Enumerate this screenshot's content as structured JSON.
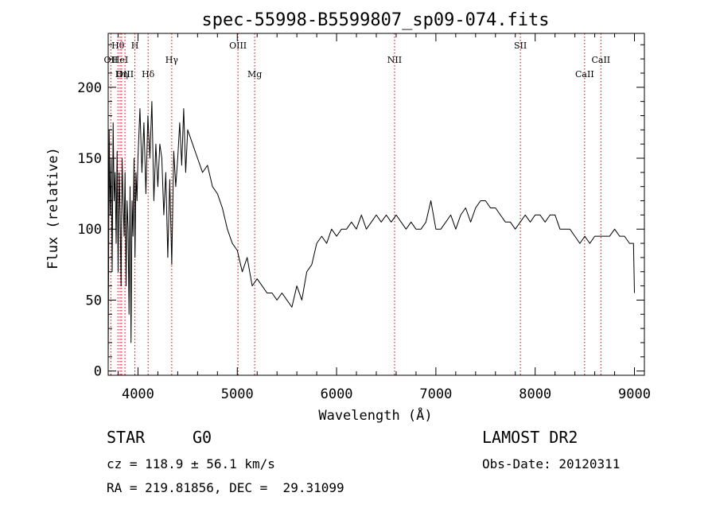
{
  "chart_data": {
    "type": "line",
    "title": "spec-55998-B5599807_sp09-074.fits",
    "xlabel": "Wavelength (Å)",
    "ylabel": "Flux (relative)",
    "xlim": [
      3700,
      9100
    ],
    "ylim": [
      -3,
      238
    ],
    "xticks": [
      4000,
      5000,
      6000,
      7000,
      8000,
      9000
    ],
    "yticks": [
      0,
      50,
      100,
      150,
      200
    ],
    "grid": false,
    "line_color": "#000000",
    "marker_color": "#cc0000",
    "series": [
      {
        "x": [
          3700,
          3710,
          3720,
          3730,
          3740,
          3750,
          3760,
          3770,
          3780,
          3790,
          3800,
          3810,
          3820,
          3830,
          3840,
          3850,
          3860,
          3870,
          3880,
          3890,
          3900,
          3910,
          3920,
          3930,
          3940,
          3950,
          3960,
          3970,
          3980,
          3990,
          4000,
          4020,
          4040,
          4060,
          4080,
          4100,
          4120,
          4140,
          4160,
          4180,
          4200,
          4220,
          4240,
          4260,
          4280,
          4300,
          4320,
          4340,
          4360,
          4380,
          4400,
          4420,
          4440,
          4460,
          4480,
          4500,
          4550,
          4600,
          4650,
          4700,
          4750,
          4800,
          4850,
          4900,
          4950,
          5000,
          5050,
          5100,
          5150,
          5200,
          5250,
          5300,
          5350,
          5400,
          5450,
          5500,
          5550,
          5600,
          5650,
          5700,
          5750,
          5800,
          5850,
          5900,
          5950,
          6000,
          6050,
          6100,
          6150,
          6200,
          6250,
          6300,
          6350,
          6400,
          6450,
          6500,
          6550,
          6600,
          6650,
          6700,
          6750,
          6800,
          6850,
          6900,
          6950,
          7000,
          7050,
          7100,
          7150,
          7200,
          7250,
          7300,
          7350,
          7400,
          7450,
          7500,
          7550,
          7600,
          7650,
          7700,
          7750,
          7800,
          7850,
          7900,
          7950,
          8000,
          8050,
          8100,
          8150,
          8200,
          8250,
          8300,
          8350,
          8400,
          8450,
          8500,
          8550,
          8600,
          8650,
          8700,
          8750,
          8800,
          8850,
          8900,
          8950,
          8990,
          9000
        ],
        "y": [
          5,
          170,
          110,
          150,
          70,
          175,
          120,
          140,
          90,
          155,
          70,
          140,
          110,
          60,
          150,
          120,
          95,
          140,
          60,
          120,
          100,
          40,
          130,
          20,
          120,
          95,
          150,
          80,
          140,
          120,
          150,
          185,
          140,
          175,
          125,
          180,
          150,
          190,
          120,
          160,
          130,
          160,
          150,
          110,
          140,
          80,
          135,
          75,
          155,
          130,
          150,
          175,
          145,
          185,
          140,
          170,
          160,
          150,
          140,
          145,
          130,
          125,
          115,
          100,
          90,
          85,
          70,
          80,
          60,
          65,
          60,
          55,
          55,
          50,
          55,
          50,
          45,
          60,
          50,
          70,
          75,
          90,
          95,
          90,
          100,
          95,
          100,
          100,
          105,
          100,
          110,
          100,
          105,
          110,
          105,
          110,
          105,
          110,
          105,
          100,
          105,
          100,
          100,
          105,
          120,
          100,
          100,
          105,
          110,
          100,
          110,
          115,
          105,
          115,
          120,
          120,
          115,
          115,
          110,
          105,
          105,
          100,
          105,
          110,
          105,
          110,
          110,
          105,
          110,
          110,
          100,
          100,
          100,
          95,
          90,
          95,
          90,
          95,
          95,
          95,
          95,
          100,
          95,
          95,
          90,
          90,
          55
        ]
      }
    ],
    "lines": [
      {
        "label": "Hθ",
        "x": 3798,
        "row": 0
      },
      {
        "label": "OII",
        "x": 3727,
        "row": 1
      },
      {
        "label": "HeI",
        "x": 3820,
        "row": 1
      },
      {
        "label": "OIII",
        "x": 3869,
        "row": 2
      },
      {
        "label": "Hη",
        "x": 3835,
        "row": 2
      },
      {
        "label": "H",
        "x": 3969,
        "row": 0
      },
      {
        "label": "Hδ",
        "x": 4102,
        "row": 2
      },
      {
        "label": "Hγ",
        "x": 4340,
        "row": 1
      },
      {
        "label": "OIII",
        "x": 5007,
        "row": 0
      },
      {
        "label": "Mg",
        "x": 5175,
        "row": 2
      },
      {
        "label": "NII",
        "x": 6584,
        "row": 1
      },
      {
        "label": "SII",
        "x": 7851,
        "row": 0
      },
      {
        "label": "CaII",
        "x": 8662,
        "row": 1
      },
      {
        "label": "CaII",
        "x": 8498,
        "row": 2
      }
    ]
  },
  "footer": {
    "object_class": "STAR",
    "subclass": "G0",
    "cz_line": "cz = 118.9 ± 56.1 km/s",
    "coords_line": "RA = 219.81856, DEC =  29.31099",
    "survey": "LAMOST DR2",
    "obs_date_line": "Obs-Date: 20120311"
  }
}
